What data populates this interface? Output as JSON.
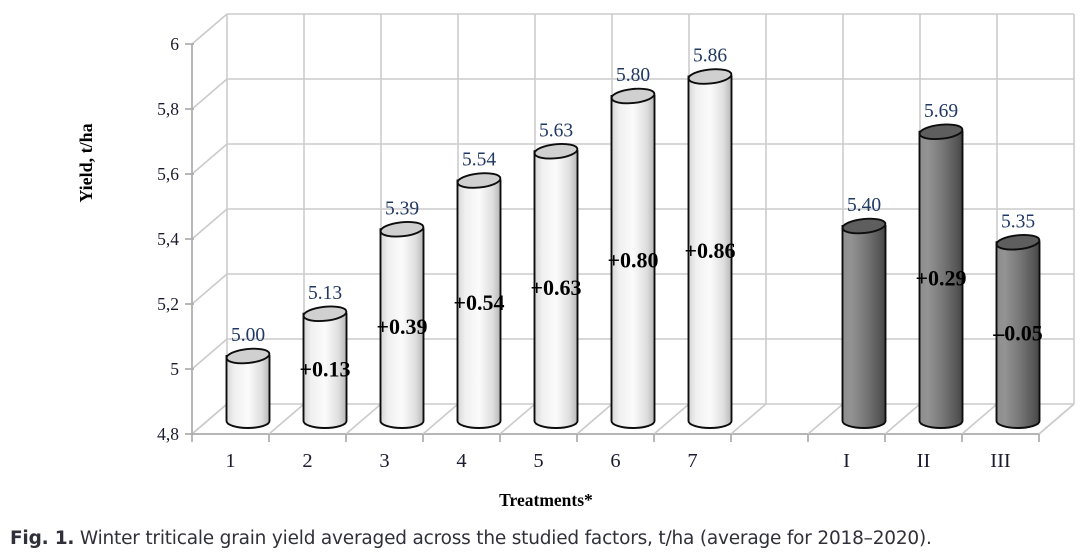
{
  "figure": {
    "caption_label": "Fig. 1.",
    "caption_text": " Winter triticale grain yield averaged across the studied factors, t/ha (average for 2018–2020)."
  },
  "chart_data": {
    "type": "bar",
    "subtype": "3d-cylinder-column",
    "title": "",
    "xlabel": "Treatments*",
    "ylabel": "Yield, t/ha",
    "ylim": [
      4.8,
      6.0
    ],
    "grid": true,
    "legend": "none",
    "decimal_style_axis": "comma",
    "yticks": [
      {
        "value": 6.0,
        "label": "6"
      },
      {
        "value": 5.8,
        "label": "5,8"
      },
      {
        "value": 5.6,
        "label": "5,6"
      },
      {
        "value": 5.4,
        "label": "5,4"
      },
      {
        "value": 5.2,
        "label": "5,2"
      },
      {
        "value": 5.0,
        "label": "5"
      },
      {
        "value": 4.8,
        "label": "4,8"
      }
    ],
    "slots": 11,
    "bars": [
      {
        "slot": 0,
        "category": "1",
        "value": 5.0,
        "value_label": "5.00",
        "diff_label": null,
        "style": "light"
      },
      {
        "slot": 1,
        "category": "2",
        "value": 5.13,
        "value_label": "5.13",
        "diff_label": "+0.13",
        "style": "light"
      },
      {
        "slot": 2,
        "category": "3",
        "value": 5.39,
        "value_label": "5.39",
        "diff_label": "+0.39",
        "style": "light"
      },
      {
        "slot": 3,
        "category": "4",
        "value": 5.54,
        "value_label": "5.54",
        "diff_label": "+0.54",
        "style": "light"
      },
      {
        "slot": 4,
        "category": "5",
        "value": 5.63,
        "value_label": "5.63",
        "diff_label": "+0.63",
        "style": "light"
      },
      {
        "slot": 5,
        "category": "6",
        "value": 5.8,
        "value_label": "5.80",
        "diff_label": "+0.80",
        "style": "light"
      },
      {
        "slot": 6,
        "category": "7",
        "value": 5.86,
        "value_label": "5.86",
        "diff_label": "+0.86",
        "style": "light"
      },
      {
        "slot": 8,
        "category": "I",
        "value": 5.4,
        "value_label": "5.40",
        "diff_label": null,
        "style": "dark"
      },
      {
        "slot": 9,
        "category": "II",
        "value": 5.69,
        "value_label": "5.69",
        "diff_label": "+0.29",
        "style": "dark"
      },
      {
        "slot": 10,
        "category": "III",
        "value": 5.35,
        "value_label": "5.35",
        "diff_label": "–0.05",
        "style": "dark"
      }
    ],
    "colors": {
      "light_bar_body": "#f2f2f2",
      "light_bar_top": "#d0d0d0",
      "dark_bar_body": "#747474",
      "dark_bar_top": "#5e5e5e",
      "outline": "#0d0d0d",
      "gridline": "#cbcbcb",
      "axis_line": "#ababab",
      "value_label_color": "#203864",
      "diff_label_color": "#000000",
      "tick_label_color": "#1c1c30"
    }
  }
}
